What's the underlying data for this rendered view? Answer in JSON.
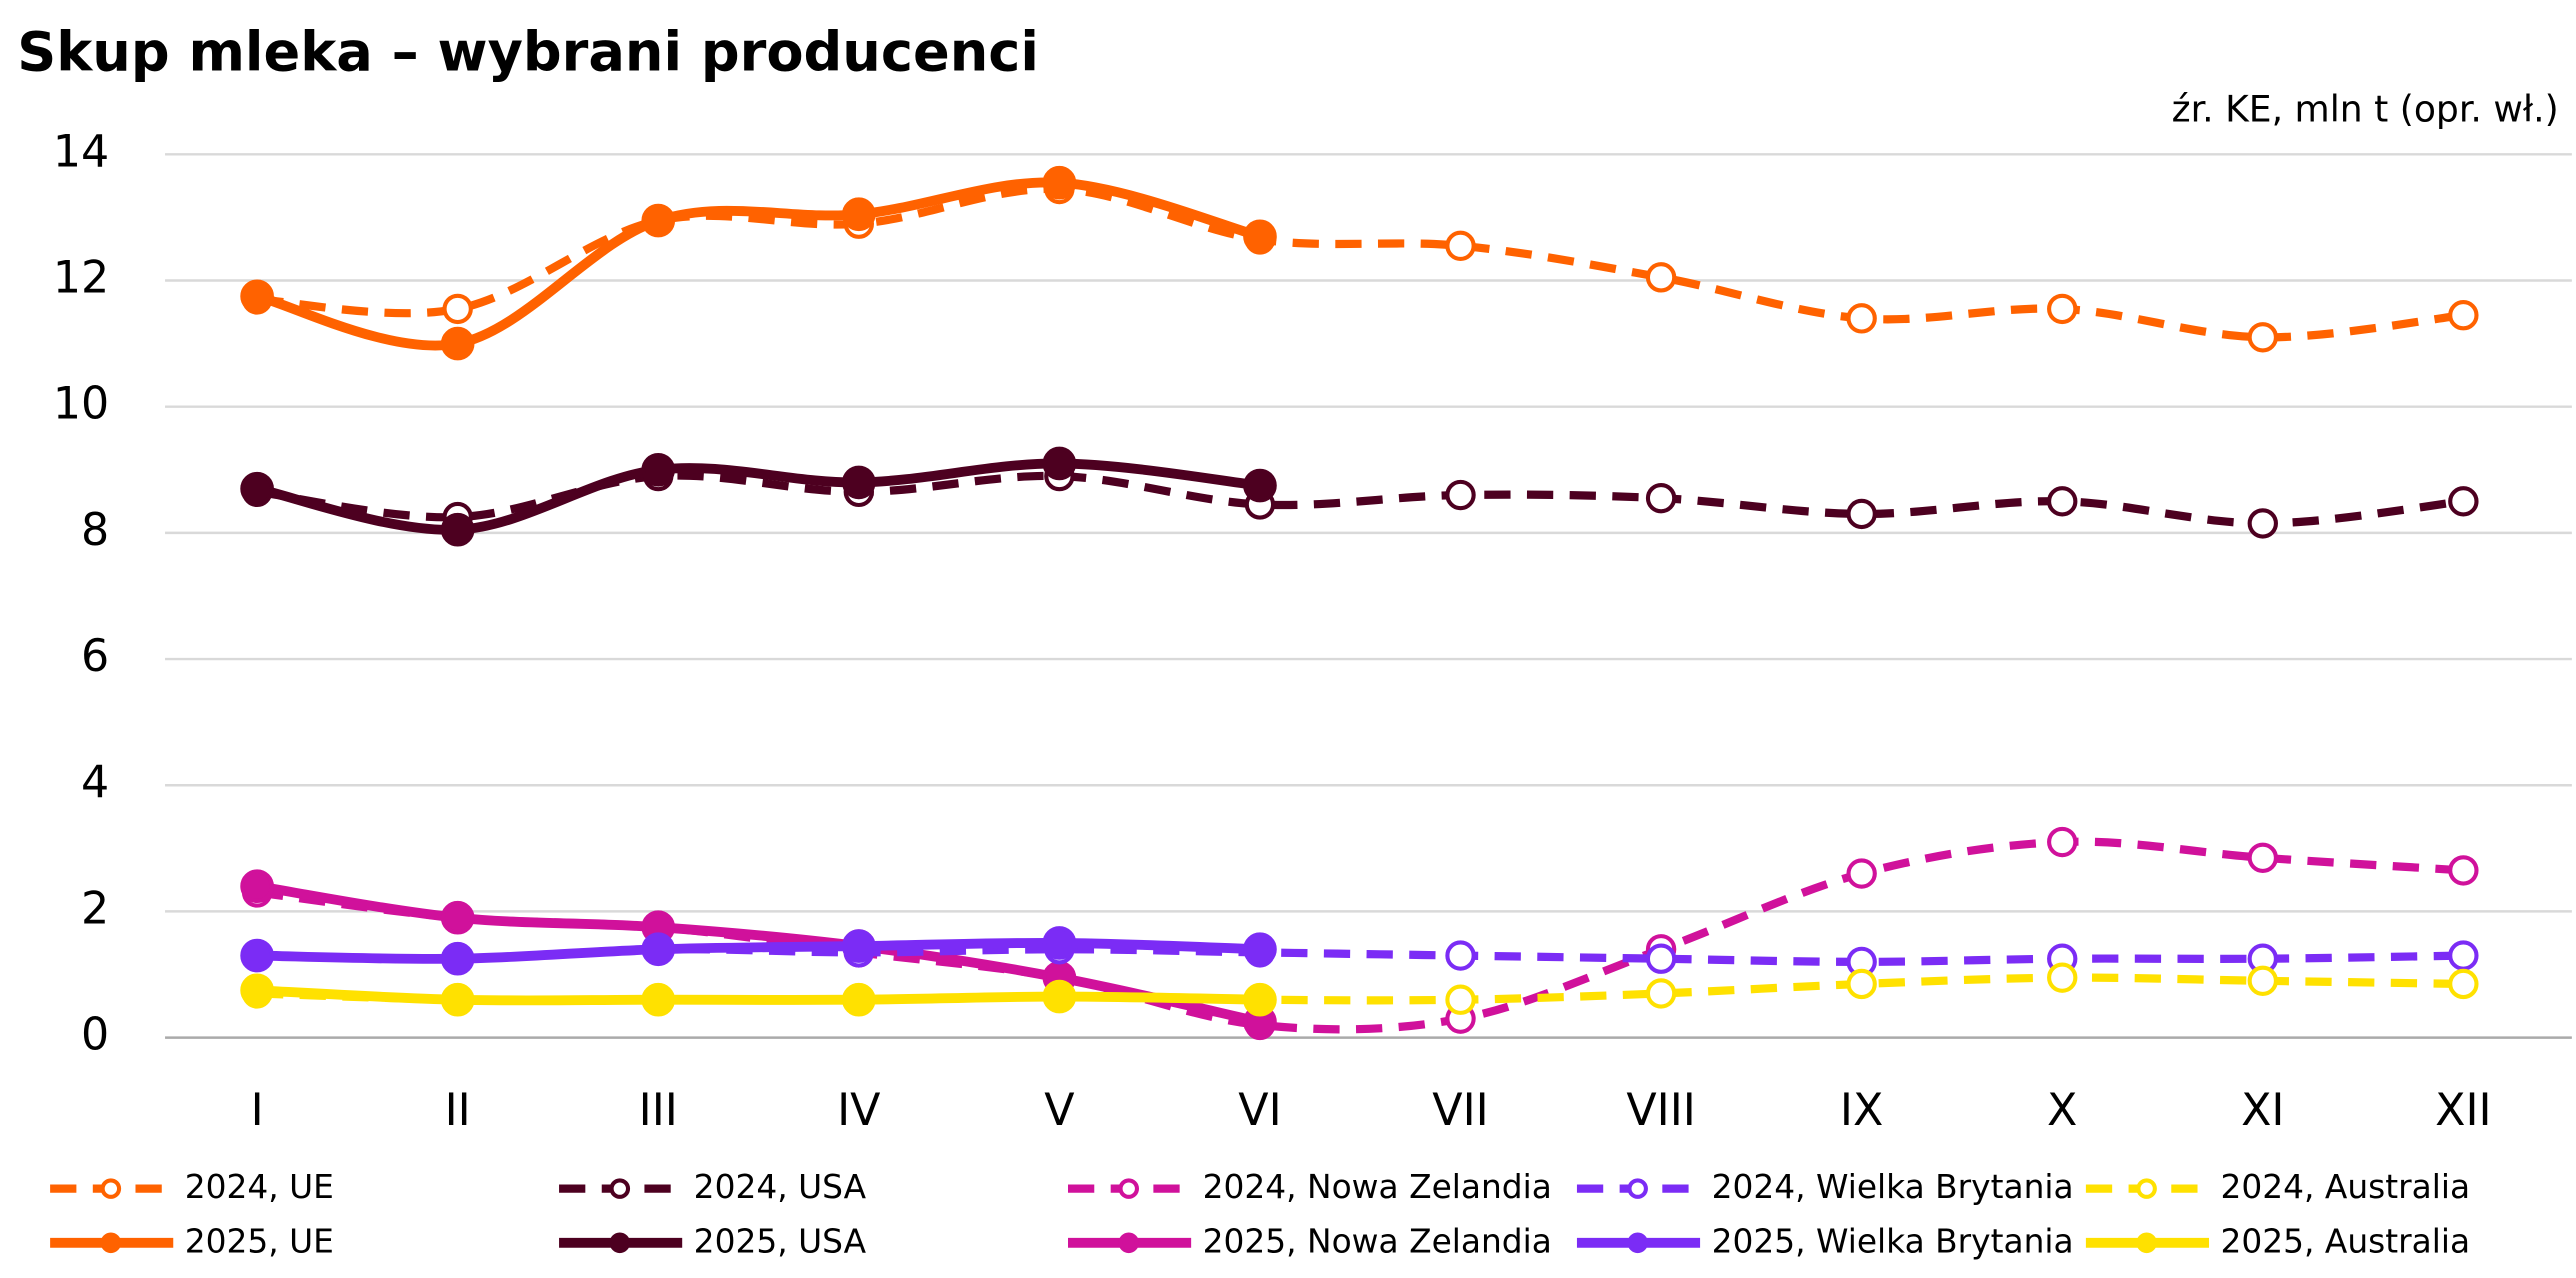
{
  "chart_data": {
    "type": "line",
    "title": "Skup mleka – wybrani producenci",
    "subtitle": "źr. KE, mln t (opr. wł.)",
    "categories": [
      "I",
      "II",
      "III",
      "IV",
      "V",
      "VI",
      "VII",
      "VIII",
      "IX",
      "X",
      "XI",
      "XII"
    ],
    "ylim": [
      0,
      14
    ],
    "yticks": [
      0,
      2,
      4,
      6,
      8,
      10,
      12,
      14
    ],
    "grid": true,
    "smooth": true,
    "legend": "bottom",
    "series": [
      {
        "name": "2024, UE",
        "color": "#ff6200",
        "style": "dashed",
        "values": [
          11.7,
          11.55,
          12.95,
          12.9,
          13.45,
          12.65,
          12.55,
          12.05,
          11.4,
          11.55,
          11.1,
          11.45
        ]
      },
      {
        "name": "2025, UE",
        "color": "#ff6200",
        "style": "solid",
        "values": [
          11.75,
          11.0,
          12.95,
          13.05,
          13.55,
          12.7,
          null,
          null,
          null,
          null,
          null,
          null
        ]
      },
      {
        "name": "2024, USA",
        "color": "#4d0020",
        "style": "dashed",
        "values": [
          8.65,
          8.25,
          8.9,
          8.65,
          8.9,
          8.45,
          8.6,
          8.55,
          8.3,
          8.5,
          8.15,
          8.5
        ]
      },
      {
        "name": "2025, USA",
        "color": "#4d0020",
        "style": "solid",
        "values": [
          8.7,
          8.05,
          9.0,
          8.8,
          9.1,
          8.75,
          null,
          null,
          null,
          null,
          null,
          null
        ]
      },
      {
        "name": "2024, Nowa Zelandia",
        "color": "#d0119b",
        "style": "dashed",
        "values": [
          2.3,
          1.9,
          1.75,
          1.35,
          0.95,
          0.2,
          0.3,
          1.4,
          2.6,
          3.1,
          2.85,
          2.65
        ]
      },
      {
        "name": "2025, Nowa Zelandia",
        "color": "#d0119b",
        "style": "solid",
        "values": [
          2.4,
          1.9,
          1.75,
          1.45,
          0.95,
          0.25,
          null,
          null,
          null,
          null,
          null,
          null
        ]
      },
      {
        "name": "2024, Wielka Brytania",
        "color": "#7b2cf5",
        "style": "dashed",
        "values": [
          1.3,
          1.25,
          1.4,
          1.35,
          1.4,
          1.35,
          1.3,
          1.25,
          1.2,
          1.25,
          1.25,
          1.3
        ]
      },
      {
        "name": "2025, Wielka Brytania",
        "color": "#7b2cf5",
        "style": "solid",
        "values": [
          1.3,
          1.25,
          1.4,
          1.45,
          1.5,
          1.4,
          null,
          null,
          null,
          null,
          null,
          null
        ]
      },
      {
        "name": "2024, Australia",
        "color": "#ffe100",
        "style": "dashed",
        "values": [
          0.7,
          0.6,
          0.6,
          0.6,
          0.65,
          0.6,
          0.6,
          0.7,
          0.85,
          0.95,
          0.9,
          0.85
        ]
      },
      {
        "name": "2025, Australia",
        "color": "#ffe100",
        "style": "solid",
        "values": [
          0.75,
          0.6,
          0.6,
          0.6,
          0.65,
          0.6,
          null,
          null,
          null,
          null,
          null,
          null
        ]
      }
    ]
  }
}
